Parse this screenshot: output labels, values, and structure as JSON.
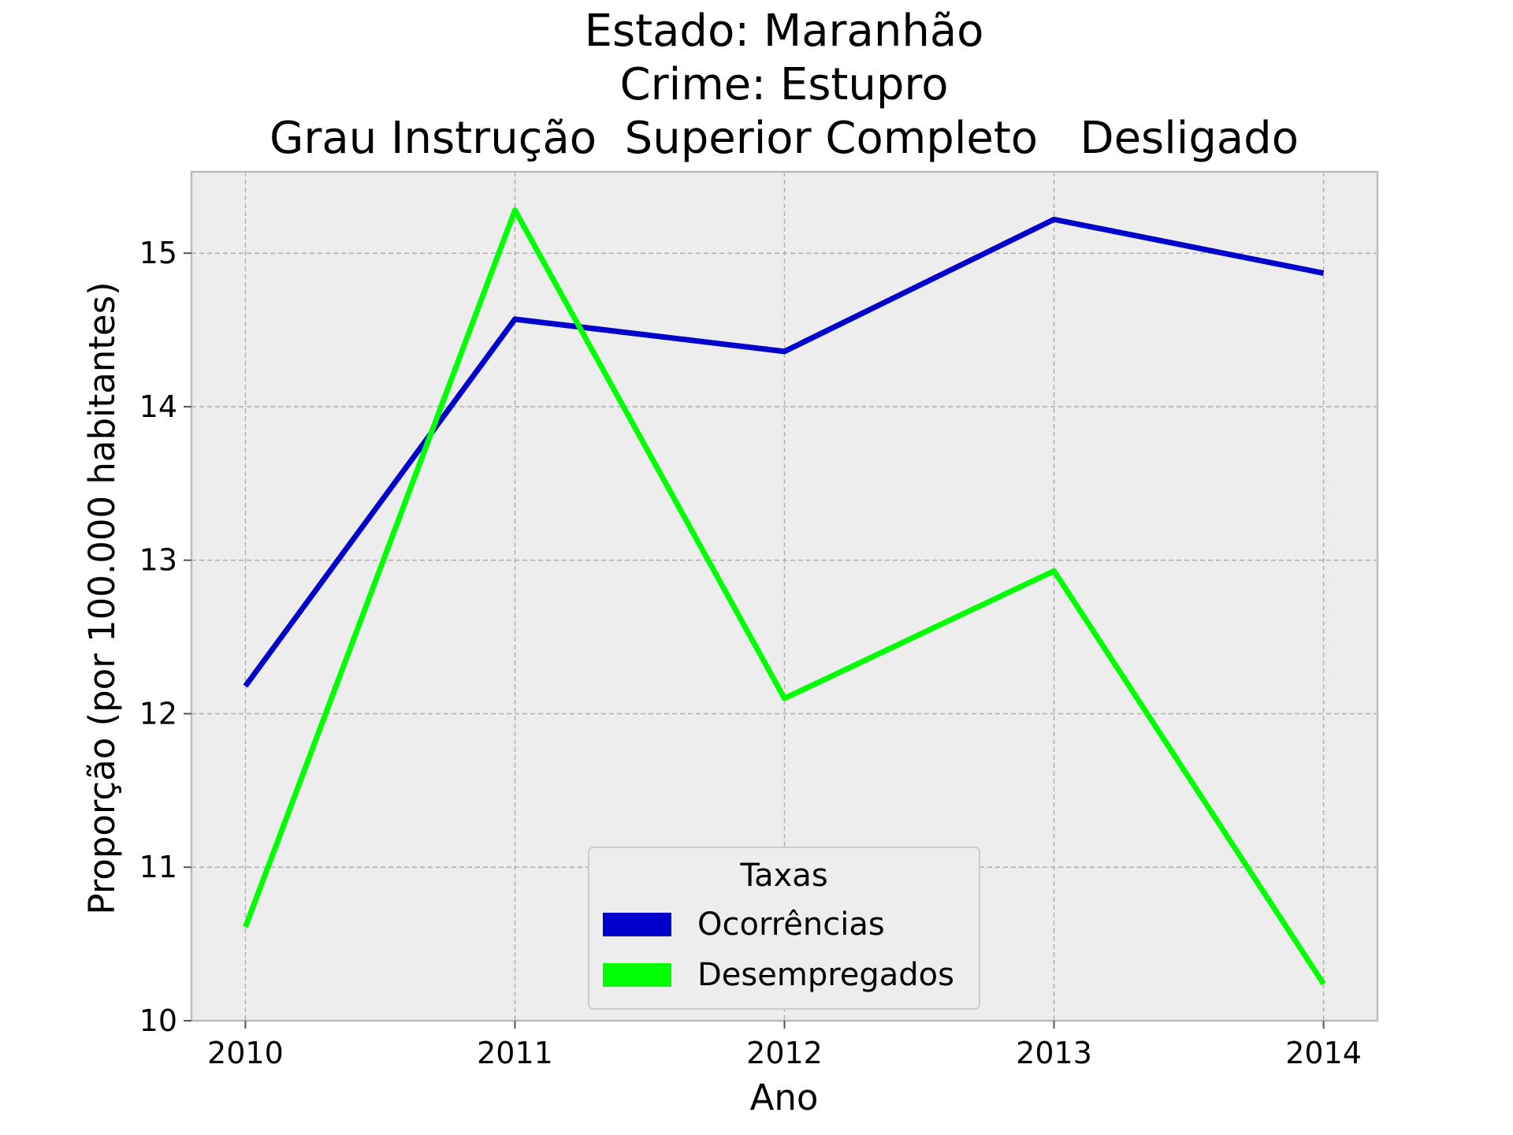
{
  "chart_data": {
    "type": "line",
    "title": [
      "Estado: Maranhão",
      "Crime: Estupro",
      "Grau Instrução  Superior Completo   Desligado"
    ],
    "xlabel": "Ano",
    "ylabel": "Proporção (por 100.000 habitantes)",
    "x": [
      2010,
      2011,
      2012,
      2013,
      2014
    ],
    "x_tick_labels": [
      "2010",
      "2011",
      "2012",
      "2013",
      "2014"
    ],
    "y_ticks": [
      10,
      11,
      12,
      13,
      14,
      15
    ],
    "y_tick_labels": [
      "10",
      "11",
      "12",
      "13",
      "14",
      "15"
    ],
    "xlim": [
      2009.8,
      2014.2
    ],
    "ylim": [
      10.0,
      15.53
    ],
    "grid": true,
    "legend": {
      "title": "Taxas",
      "placement": "lower-center"
    },
    "background_color": "#ededed",
    "series": [
      {
        "name": "Ocorrências",
        "color": "#0000cd",
        "values": [
          12.18,
          14.57,
          14.36,
          15.22,
          14.87
        ]
      },
      {
        "name": "Desempregados",
        "color": "#00ff00",
        "values": [
          10.61,
          15.28,
          12.1,
          12.93,
          10.24
        ]
      }
    ]
  }
}
